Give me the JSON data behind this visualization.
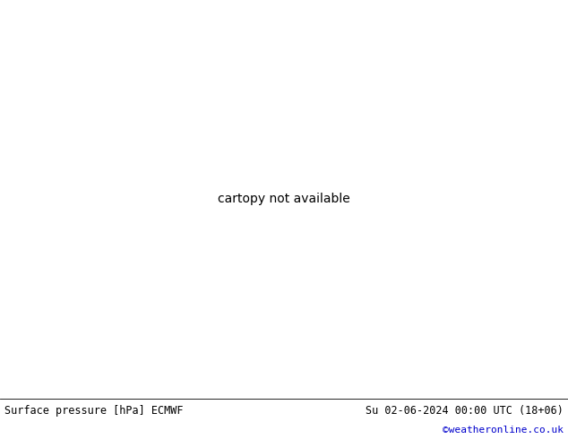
{
  "title_left": "Surface pressure [hPa] ECMWF",
  "title_right": "Su 02-06-2024 00:00 UTC (18+06)",
  "watermark": "©weatheronline.co.uk",
  "watermark_color": "#0000cc",
  "land_color": "#b5e8a0",
  "sea_color": "#d2d2d2",
  "coast_color": "#888888",
  "contour_red": "#cc0000",
  "contour_blue": "#0000cc",
  "contour_black": "#000000",
  "footer_bg": "#ffffff",
  "figsize": [
    6.34,
    4.9
  ],
  "dpi": 100,
  "extent": [
    -42,
    42,
    27,
    72
  ]
}
